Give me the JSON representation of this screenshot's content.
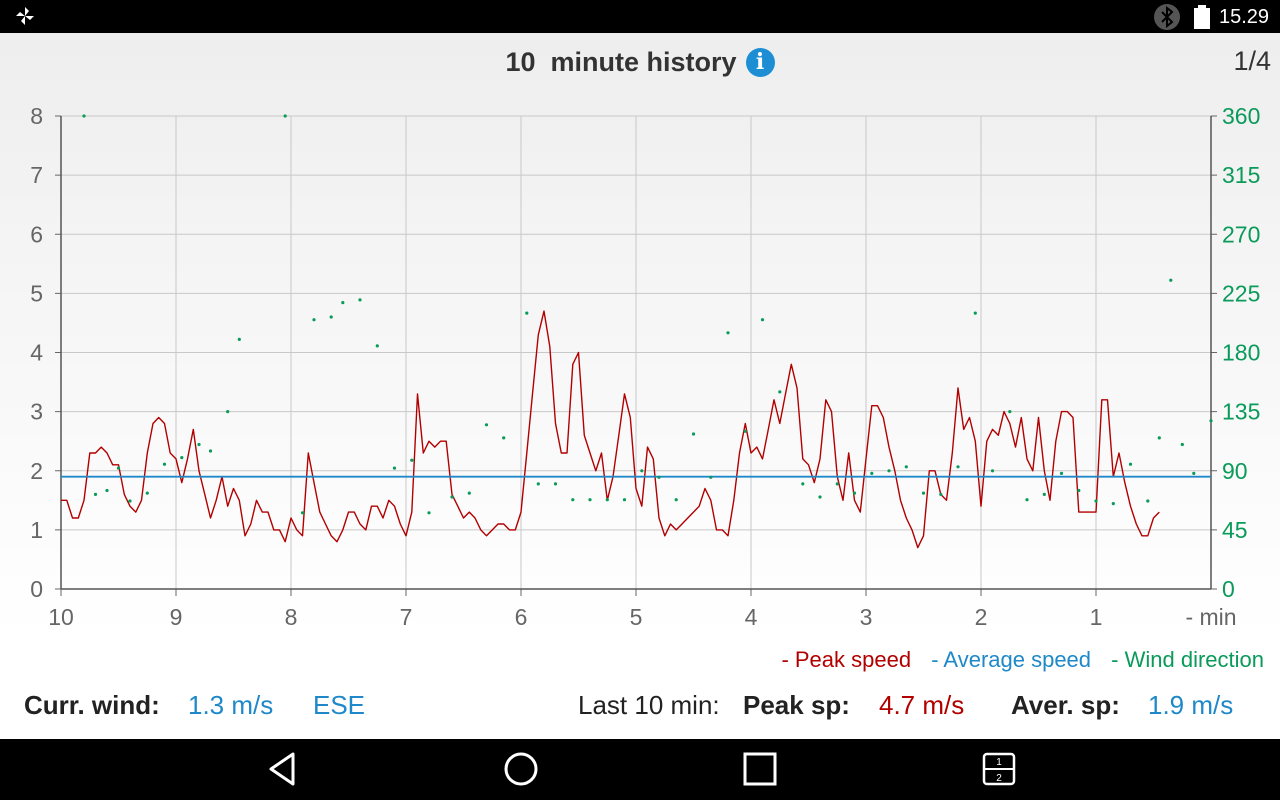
{
  "status_bar": {
    "time": "15.29",
    "icons": [
      "pinwheel-icon",
      "bluetooth-icon",
      "battery-icon"
    ]
  },
  "header": {
    "title": "10  minute history",
    "info_icon": "info-icon",
    "page_indicator": "1/4"
  },
  "colors": {
    "peak": "#b20000",
    "average": "#1e88c8",
    "direction": "#0a9a5a",
    "grid": "#c8c8c8"
  },
  "chart_data": {
    "type": "line",
    "xlabel": "- min",
    "x_ticks": [
      "10",
      "9",
      "8",
      "7",
      "6",
      "5",
      "4",
      "3",
      "2",
      "1"
    ],
    "xlim": [
      10,
      0
    ],
    "ylim_left": [
      0,
      8
    ],
    "y_ticks_left": [
      "0",
      "1",
      "2",
      "3",
      "4",
      "5",
      "6",
      "7",
      "8"
    ],
    "ylim_right": [
      0,
      360
    ],
    "y_ticks_right": [
      "0",
      "45",
      "90",
      "135",
      "180",
      "225",
      "270",
      "315",
      "360"
    ],
    "grid": true,
    "legend_position": "bottom-right",
    "legend": [
      "- Peak speed",
      "- Average speed",
      "- Wind direction"
    ],
    "series": [
      {
        "name": "- Peak speed",
        "axis": "left",
        "kind": "line",
        "points": [
          [
            10.0,
            1.5
          ],
          [
            9.95,
            1.5
          ],
          [
            9.9,
            1.2
          ],
          [
            9.85,
            1.2
          ],
          [
            9.8,
            1.5
          ],
          [
            9.75,
            2.3
          ],
          [
            9.7,
            2.3
          ],
          [
            9.65,
            2.4
          ],
          [
            9.6,
            2.3
          ],
          [
            9.55,
            2.1
          ],
          [
            9.5,
            2.1
          ],
          [
            9.45,
            1.6
          ],
          [
            9.4,
            1.4
          ],
          [
            9.35,
            1.3
          ],
          [
            9.3,
            1.5
          ],
          [
            9.25,
            2.3
          ],
          [
            9.2,
            2.8
          ],
          [
            9.15,
            2.9
          ],
          [
            9.1,
            2.8
          ],
          [
            9.05,
            2.3
          ],
          [
            9.0,
            2.2
          ],
          [
            8.95,
            1.8
          ],
          [
            8.9,
            2.2
          ],
          [
            8.85,
            2.7
          ],
          [
            8.8,
            2.0
          ],
          [
            8.75,
            1.6
          ],
          [
            8.7,
            1.2
          ],
          [
            8.65,
            1.5
          ],
          [
            8.6,
            1.9
          ],
          [
            8.55,
            1.4
          ],
          [
            8.5,
            1.7
          ],
          [
            8.45,
            1.5
          ],
          [
            8.4,
            0.9
          ],
          [
            8.35,
            1.1
          ],
          [
            8.3,
            1.5
          ],
          [
            8.25,
            1.3
          ],
          [
            8.2,
            1.3
          ],
          [
            8.15,
            1.0
          ],
          [
            8.1,
            1.0
          ],
          [
            8.05,
            0.8
          ],
          [
            8.0,
            1.2
          ],
          [
            7.95,
            1.0
          ],
          [
            7.9,
            0.9
          ],
          [
            7.85,
            2.3
          ],
          [
            7.8,
            1.8
          ],
          [
            7.75,
            1.3
          ],
          [
            7.7,
            1.1
          ],
          [
            7.65,
            0.9
          ],
          [
            7.6,
            0.8
          ],
          [
            7.55,
            1.0
          ],
          [
            7.5,
            1.3
          ],
          [
            7.45,
            1.3
          ],
          [
            7.4,
            1.1
          ],
          [
            7.35,
            1.0
          ],
          [
            7.3,
            1.4
          ],
          [
            7.25,
            1.4
          ],
          [
            7.2,
            1.2
          ],
          [
            7.15,
            1.5
          ],
          [
            7.1,
            1.4
          ],
          [
            7.05,
            1.1
          ],
          [
            7.0,
            0.9
          ],
          [
            6.95,
            1.3
          ],
          [
            6.9,
            3.3
          ],
          [
            6.85,
            2.3
          ],
          [
            6.8,
            2.5
          ],
          [
            6.75,
            2.4
          ],
          [
            6.7,
            2.5
          ],
          [
            6.65,
            2.5
          ],
          [
            6.6,
            1.6
          ],
          [
            6.55,
            1.4
          ],
          [
            6.5,
            1.2
          ],
          [
            6.45,
            1.3
          ],
          [
            6.4,
            1.2
          ],
          [
            6.35,
            1.0
          ],
          [
            6.3,
            0.9
          ],
          [
            6.25,
            1.0
          ],
          [
            6.2,
            1.1
          ],
          [
            6.15,
            1.1
          ],
          [
            6.1,
            1.0
          ],
          [
            6.05,
            1.0
          ],
          [
            6.0,
            1.3
          ],
          [
            5.95,
            2.3
          ],
          [
            5.9,
            3.3
          ],
          [
            5.85,
            4.3
          ],
          [
            5.8,
            4.7
          ],
          [
            5.75,
            4.1
          ],
          [
            5.7,
            2.8
          ],
          [
            5.65,
            2.3
          ],
          [
            5.6,
            2.3
          ],
          [
            5.55,
            3.8
          ],
          [
            5.5,
            4.0
          ],
          [
            5.45,
            2.6
          ],
          [
            5.4,
            2.3
          ],
          [
            5.35,
            2.0
          ],
          [
            5.3,
            2.3
          ],
          [
            5.25,
            1.5
          ],
          [
            5.2,
            1.9
          ],
          [
            5.15,
            2.6
          ],
          [
            5.1,
            3.3
          ],
          [
            5.05,
            2.9
          ],
          [
            5.0,
            1.7
          ],
          [
            4.95,
            1.4
          ],
          [
            4.9,
            2.4
          ],
          [
            4.85,
            2.2
          ],
          [
            4.8,
            1.2
          ],
          [
            4.75,
            0.9
          ],
          [
            4.7,
            1.1
          ],
          [
            4.65,
            1.0
          ],
          [
            4.6,
            1.1
          ],
          [
            4.55,
            1.2
          ],
          [
            4.5,
            1.3
          ],
          [
            4.45,
            1.4
          ],
          [
            4.4,
            1.7
          ],
          [
            4.35,
            1.5
          ],
          [
            4.3,
            1.0
          ],
          [
            4.25,
            1.0
          ],
          [
            4.2,
            0.9
          ],
          [
            4.15,
            1.5
          ],
          [
            4.1,
            2.3
          ],
          [
            4.05,
            2.8
          ],
          [
            4.0,
            2.3
          ],
          [
            3.95,
            2.4
          ],
          [
            3.9,
            2.2
          ],
          [
            3.85,
            2.7
          ],
          [
            3.8,
            3.2
          ],
          [
            3.75,
            2.8
          ],
          [
            3.7,
            3.3
          ],
          [
            3.65,
            3.8
          ],
          [
            3.6,
            3.4
          ],
          [
            3.55,
            2.2
          ],
          [
            3.5,
            2.1
          ],
          [
            3.45,
            1.8
          ],
          [
            3.4,
            2.2
          ],
          [
            3.35,
            3.2
          ],
          [
            3.3,
            3.0
          ],
          [
            3.25,
            1.9
          ],
          [
            3.2,
            1.5
          ],
          [
            3.15,
            2.3
          ],
          [
            3.1,
            1.5
          ],
          [
            3.05,
            1.3
          ],
          [
            3.0,
            2.2
          ],
          [
            2.95,
            3.1
          ],
          [
            2.9,
            3.1
          ],
          [
            2.85,
            2.9
          ],
          [
            2.8,
            2.4
          ],
          [
            2.75,
            2.0
          ],
          [
            2.7,
            1.5
          ],
          [
            2.65,
            1.2
          ],
          [
            2.6,
            1.0
          ],
          [
            2.55,
            0.7
          ],
          [
            2.5,
            0.9
          ],
          [
            2.45,
            2.0
          ],
          [
            2.4,
            2.0
          ],
          [
            2.35,
            1.6
          ],
          [
            2.3,
            1.5
          ],
          [
            2.25,
            2.3
          ],
          [
            2.2,
            3.4
          ],
          [
            2.15,
            2.7
          ],
          [
            2.1,
            2.9
          ],
          [
            2.05,
            2.5
          ],
          [
            2.0,
            1.4
          ],
          [
            1.95,
            2.5
          ],
          [
            1.9,
            2.7
          ],
          [
            1.85,
            2.6
          ],
          [
            1.8,
            3.0
          ],
          [
            1.75,
            2.8
          ],
          [
            1.7,
            2.4
          ],
          [
            1.65,
            2.9
          ],
          [
            1.6,
            2.2
          ],
          [
            1.55,
            2.0
          ],
          [
            1.5,
            2.9
          ],
          [
            1.45,
            2.0
          ],
          [
            1.4,
            1.5
          ],
          [
            1.35,
            2.5
          ],
          [
            1.3,
            3.0
          ],
          [
            1.25,
            3.0
          ],
          [
            1.2,
            2.9
          ],
          [
            1.15,
            1.3
          ],
          [
            1.1,
            1.3
          ],
          [
            1.05,
            1.3
          ],
          [
            1.0,
            1.3
          ],
          [
            0.95,
            3.2
          ],
          [
            0.9,
            3.2
          ],
          [
            0.85,
            1.9
          ],
          [
            0.8,
            2.3
          ],
          [
            0.75,
            1.8
          ],
          [
            0.7,
            1.4
          ],
          [
            0.65,
            1.1
          ],
          [
            0.6,
            0.9
          ],
          [
            0.55,
            0.9
          ],
          [
            0.5,
            1.2
          ],
          [
            0.45,
            1.3
          ]
        ]
      },
      {
        "name": "- Average speed",
        "axis": "left",
        "kind": "line",
        "points": [
          [
            10.0,
            1.9
          ],
          [
            0.0,
            1.9
          ]
        ]
      },
      {
        "name": "- Wind direction",
        "axis": "right",
        "kind": "scatter",
        "points": [
          [
            9.8,
            360
          ],
          [
            9.7,
            72
          ],
          [
            9.6,
            75
          ],
          [
            9.5,
            92
          ],
          [
            9.4,
            67
          ],
          [
            9.25,
            73
          ],
          [
            9.1,
            95
          ],
          [
            8.95,
            100
          ],
          [
            8.8,
            110
          ],
          [
            8.7,
            105
          ],
          [
            8.55,
            135
          ],
          [
            8.45,
            190
          ],
          [
            8.05,
            360
          ],
          [
            7.9,
            58
          ],
          [
            7.8,
            205
          ],
          [
            7.65,
            207
          ],
          [
            7.55,
            218
          ],
          [
            7.4,
            220
          ],
          [
            7.25,
            185
          ],
          [
            7.1,
            92
          ],
          [
            6.95,
            98
          ],
          [
            6.8,
            58
          ],
          [
            6.6,
            70
          ],
          [
            6.45,
            73
          ],
          [
            6.3,
            125
          ],
          [
            6.15,
            115
          ],
          [
            5.95,
            210
          ],
          [
            5.85,
            80
          ],
          [
            5.7,
            80
          ],
          [
            5.55,
            68
          ],
          [
            5.4,
            68
          ],
          [
            5.25,
            68
          ],
          [
            5.1,
            68
          ],
          [
            4.95,
            90
          ],
          [
            4.8,
            85
          ],
          [
            4.65,
            68
          ],
          [
            4.5,
            118
          ],
          [
            4.35,
            85
          ],
          [
            4.2,
            195
          ],
          [
            4.05,
            120
          ],
          [
            3.9,
            205
          ],
          [
            3.75,
            150
          ],
          [
            3.55,
            80
          ],
          [
            3.4,
            70
          ],
          [
            3.25,
            80
          ],
          [
            3.1,
            73
          ],
          [
            2.95,
            88
          ],
          [
            2.8,
            90
          ],
          [
            2.65,
            93
          ],
          [
            2.5,
            73
          ],
          [
            2.35,
            72
          ],
          [
            2.2,
            93
          ],
          [
            2.05,
            210
          ],
          [
            1.9,
            90
          ],
          [
            1.75,
            135
          ],
          [
            1.6,
            68
          ],
          [
            1.45,
            72
          ],
          [
            1.3,
            88
          ],
          [
            1.15,
            75
          ],
          [
            1.0,
            67
          ],
          [
            0.85,
            65
          ],
          [
            0.7,
            95
          ],
          [
            0.55,
            67
          ],
          [
            0.45,
            115
          ],
          [
            0.35,
            235
          ],
          [
            0.25,
            110
          ],
          [
            0.15,
            88
          ],
          [
            0.0,
            128
          ]
        ]
      }
    ]
  },
  "footer": {
    "curr_wind_label": "Curr. wind:",
    "curr_wind_speed": "1.3 m/s",
    "curr_wind_dir": "ESE",
    "last_label": "Last 10 min:",
    "peak_label": "Peak sp:",
    "peak_value": "4.7 m/s",
    "aver_label": "Aver. sp:",
    "aver_value": "1.9 m/s"
  },
  "nav_bar": {
    "icons": [
      "back-icon",
      "home-icon",
      "recents-icon",
      "split-screen-icon"
    ]
  }
}
